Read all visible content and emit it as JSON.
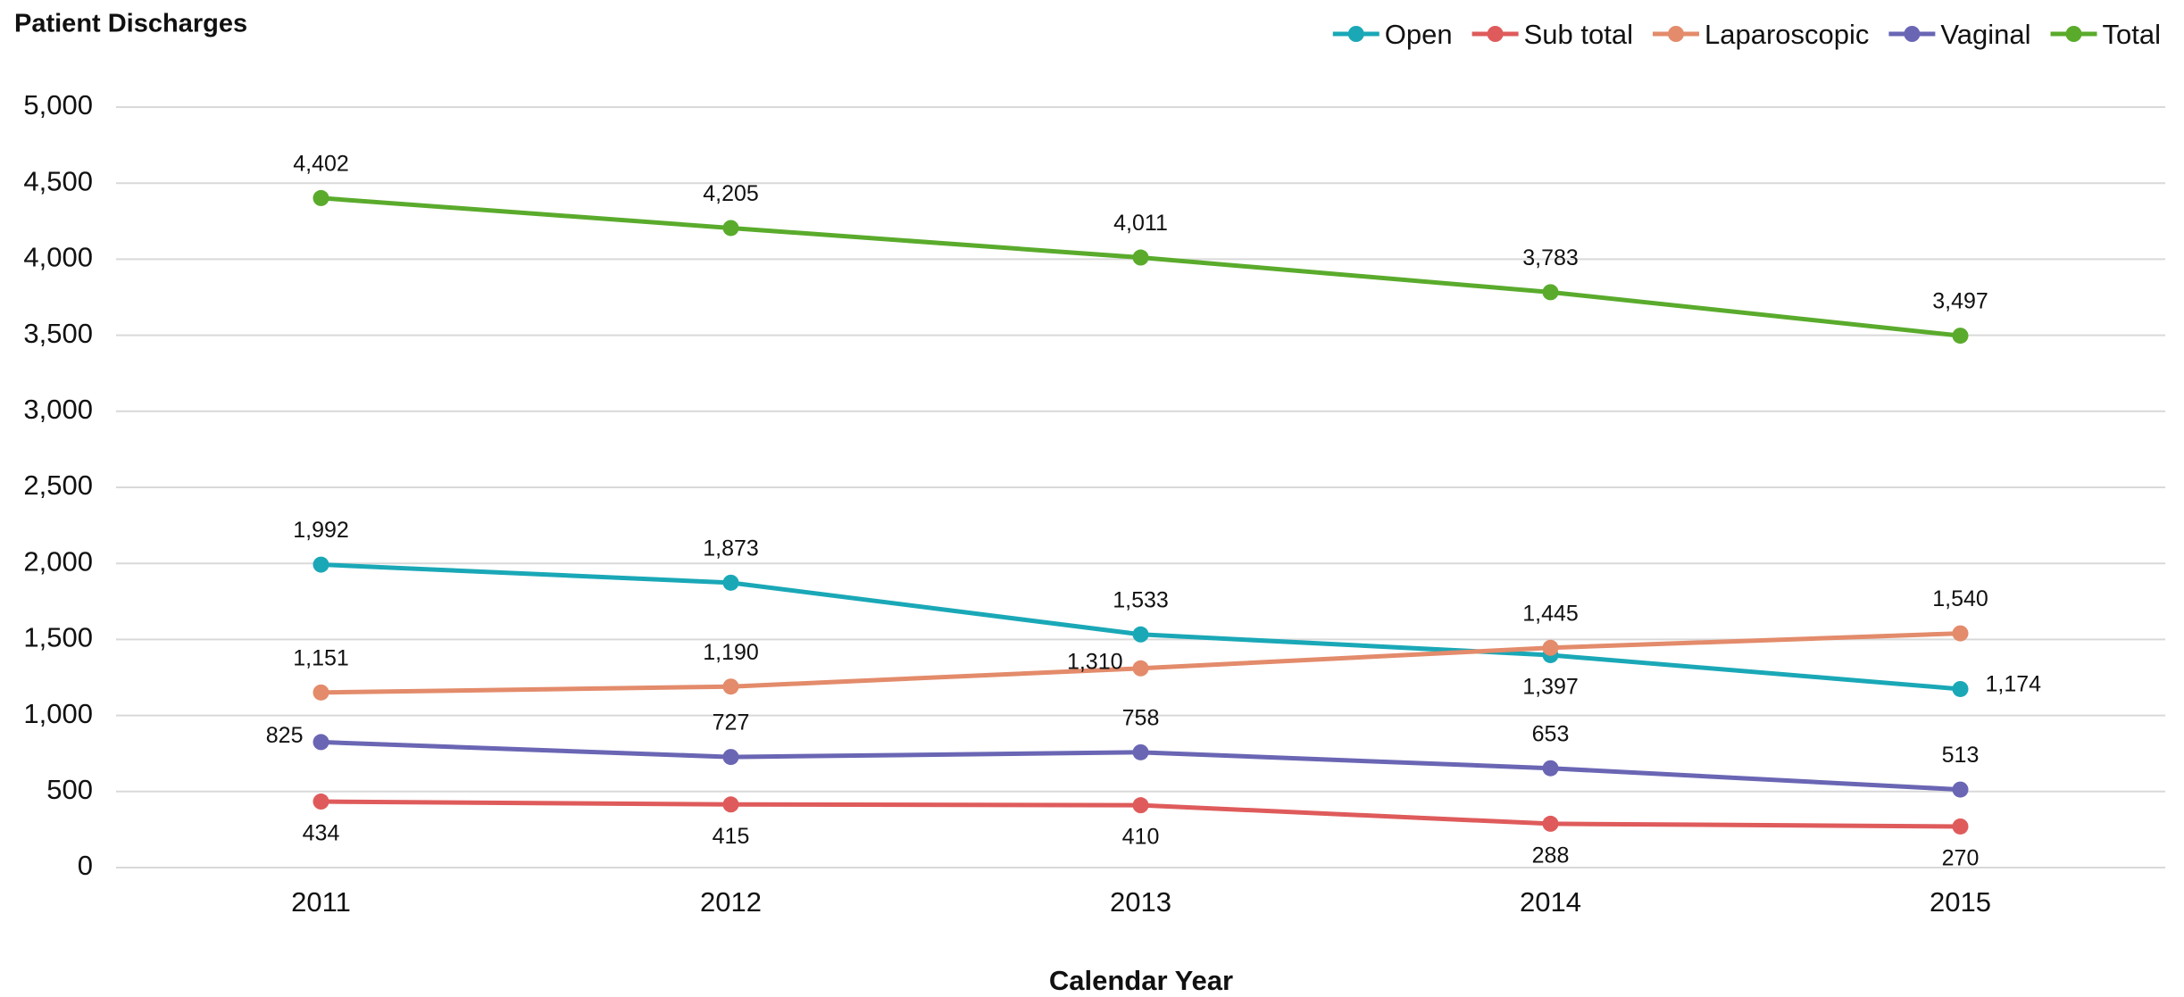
{
  "chart_data": {
    "type": "line",
    "title": "Patient Discharges",
    "x_label": "Calendar Year",
    "categories": [
      "2011",
      "2012",
      "2013",
      "2014",
      "2015"
    ],
    "series": [
      {
        "name": "Open",
        "color": "#1aa8b7",
        "values": [
          1992,
          1873,
          1533,
          1397,
          1174
        ],
        "value_labels": [
          "1,992",
          "1,873",
          "1,533",
          "1,397",
          "1,174"
        ]
      },
      {
        "name": "Sub total",
        "color": "#df5b5b",
        "values": [
          434,
          415,
          410,
          288,
          270
        ],
        "value_labels": [
          "434",
          "415",
          "410",
          "288",
          "270"
        ]
      },
      {
        "name": "Laparoscopic",
        "color": "#e38b6b",
        "values": [
          1151,
          1190,
          1310,
          1445,
          1540
        ],
        "value_labels": [
          "1,151",
          "1,190",
          "1,310",
          "1,445",
          "1,540"
        ]
      },
      {
        "name": "Vaginal",
        "color": "#6a66b4",
        "values": [
          825,
          727,
          758,
          653,
          513
        ],
        "value_labels": [
          "825",
          "727",
          "758",
          "653",
          "513"
        ]
      },
      {
        "name": "Total",
        "color": "#5aab2c",
        "values": [
          4402,
          4205,
          4011,
          3783,
          3497
        ],
        "value_labels": [
          "4,402",
          "4,205",
          "4,011",
          "3,783",
          "3,497"
        ]
      }
    ],
    "ylim": [
      0,
      5000
    ],
    "yticks": [
      0,
      500,
      {
        "value": 1000,
        "label": "1,000"
      },
      {
        "value": 1500,
        "label": "1,500"
      },
      {
        "value": 2000,
        "label": "2,000"
      },
      {
        "value": 2500,
        "label": "2,500"
      },
      {
        "value": 3000,
        "label": "3,000"
      },
      {
        "value": 3500,
        "label": "3,500"
      },
      {
        "value": 4000,
        "label": "4,000"
      },
      {
        "value": 4500,
        "label": "4,500"
      },
      {
        "value": 5000,
        "label": "5,000"
      }
    ],
    "grid": true,
    "legend": "top-right"
  }
}
